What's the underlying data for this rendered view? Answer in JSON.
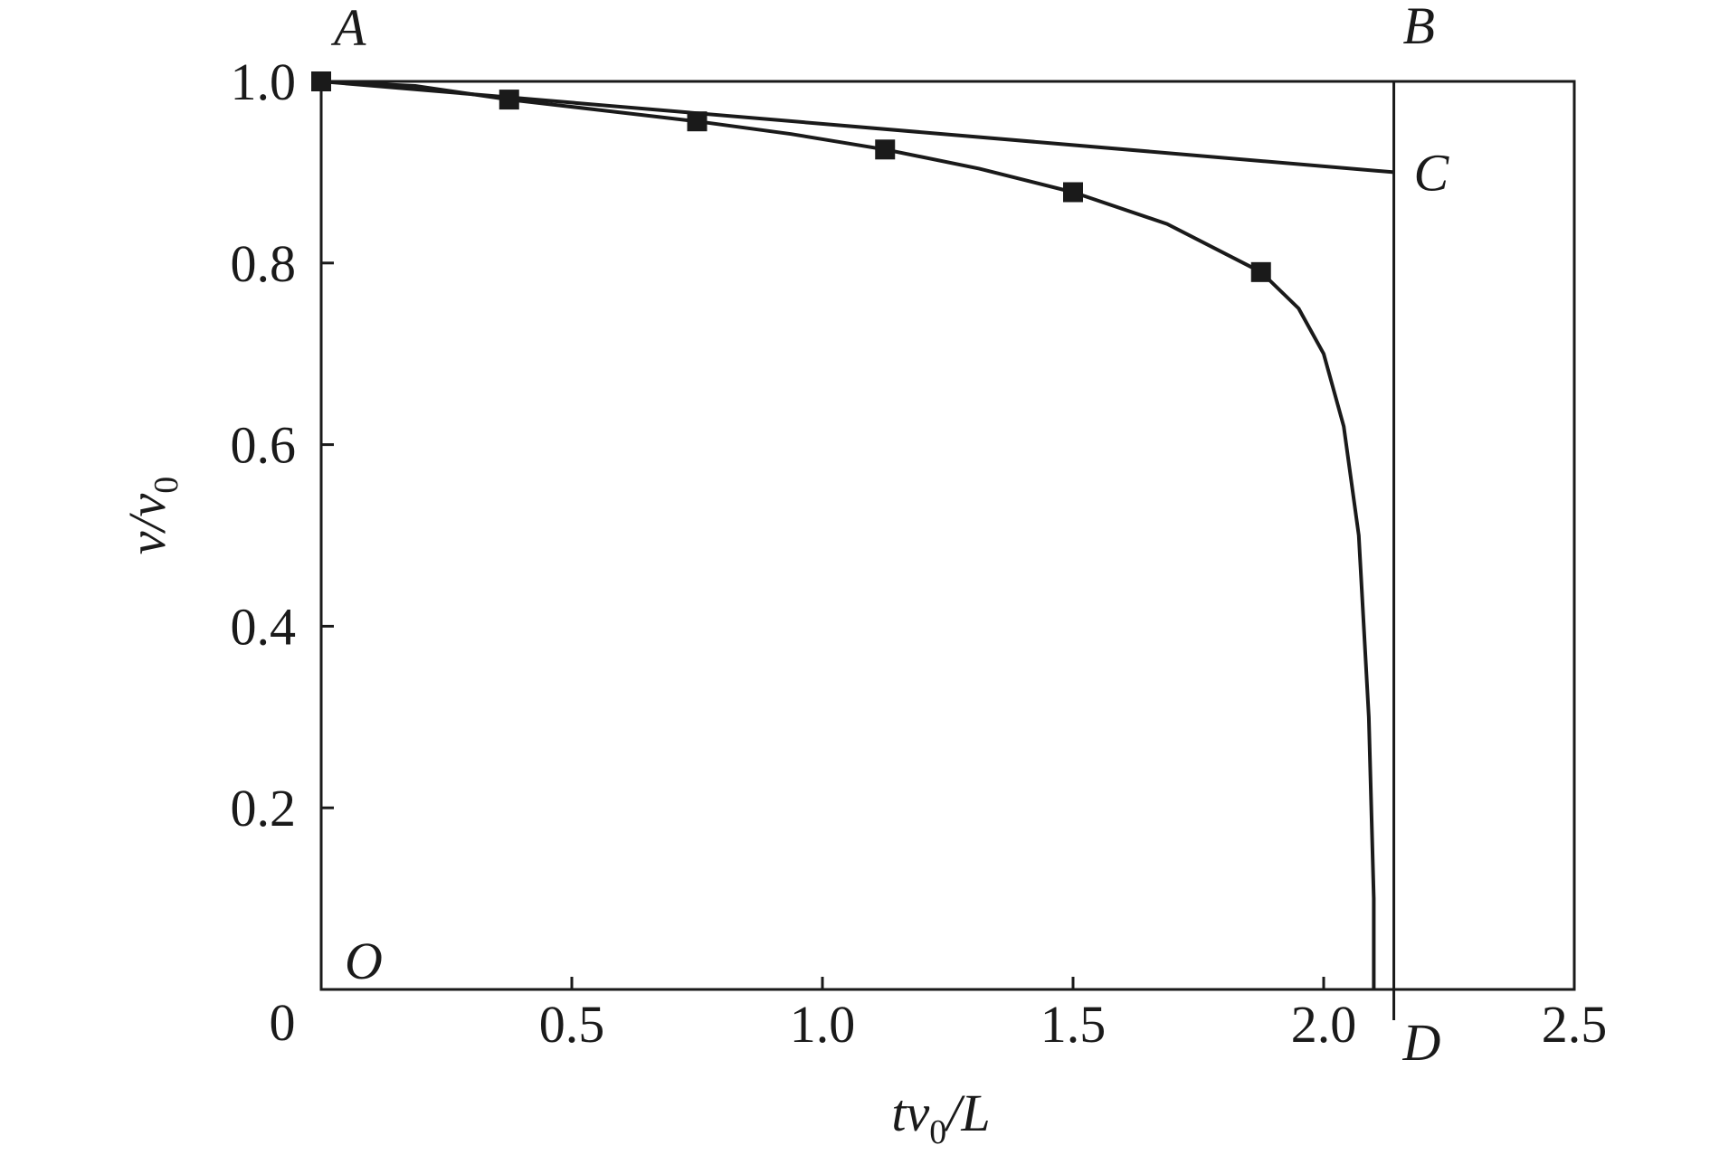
{
  "chart_data": {
    "type": "line",
    "xlabel": {
      "main": "tv",
      "sub": "0",
      "tail": "/L"
    },
    "ylabel": {
      "main": "v/v",
      "sub": "0"
    },
    "xlim": [
      0,
      2.5
    ],
    "ylim": [
      0,
      1.0
    ],
    "x_ticks": [
      0.5,
      1.0,
      1.5,
      2.0,
      2.5
    ],
    "x_tick_labels": [
      "0.5",
      "1.0",
      "1.5",
      "2.0",
      "2.5"
    ],
    "y_ticks": [
      0.2,
      0.4,
      0.6,
      0.8,
      1.0
    ],
    "y_tick_labels": [
      "0.2",
      "0.4",
      "0.6",
      "0.8",
      "1.0"
    ],
    "origin_label": "0",
    "grid": false,
    "series": [
      {
        "values": [
          [
            0.0,
            1.0
          ],
          [
            0.1875,
            0.995
          ],
          [
            0.375,
            0.98
          ],
          [
            0.5625,
            0.968
          ],
          [
            0.75,
            0.956
          ],
          [
            0.9375,
            0.942
          ],
          [
            1.125,
            0.925
          ],
          [
            1.3125,
            0.904
          ],
          [
            1.5,
            0.878
          ],
          [
            1.6875,
            0.843
          ],
          [
            1.875,
            0.79
          ],
          [
            1.95,
            0.75
          ],
          [
            2.0,
            0.7
          ],
          [
            2.04,
            0.62
          ],
          [
            2.07,
            0.5
          ],
          [
            2.09,
            0.3
          ],
          [
            2.1,
            0.1
          ],
          [
            2.1,
            0.0
          ]
        ],
        "markers": [
          [
            0.0,
            1.0
          ],
          [
            0.375,
            0.98
          ],
          [
            0.75,
            0.956
          ],
          [
            1.125,
            0.925
          ],
          [
            1.5,
            0.878
          ],
          [
            1.875,
            0.79
          ]
        ]
      },
      {
        "values": [
          [
            0.0,
            1.0
          ],
          [
            2.14,
            0.9
          ]
        ]
      }
    ],
    "lines": [
      {
        "from": [
          0.0,
          1.0
        ],
        "to": [
          2.14,
          1.0
        ]
      },
      {
        "from": [
          2.14,
          1.0
        ],
        "to": [
          2.14,
          0.0
        ]
      }
    ],
    "point_labels": [
      {
        "text": "A",
        "at": [
          0.0,
          1.0
        ]
      },
      {
        "text": "B",
        "at": [
          2.14,
          1.0
        ]
      },
      {
        "text": "C",
        "at": [
          2.14,
          0.9
        ]
      },
      {
        "text": "D",
        "at": [
          2.14,
          0.0
        ]
      },
      {
        "text": "O",
        "at": [
          0.0,
          0.0
        ]
      }
    ]
  }
}
